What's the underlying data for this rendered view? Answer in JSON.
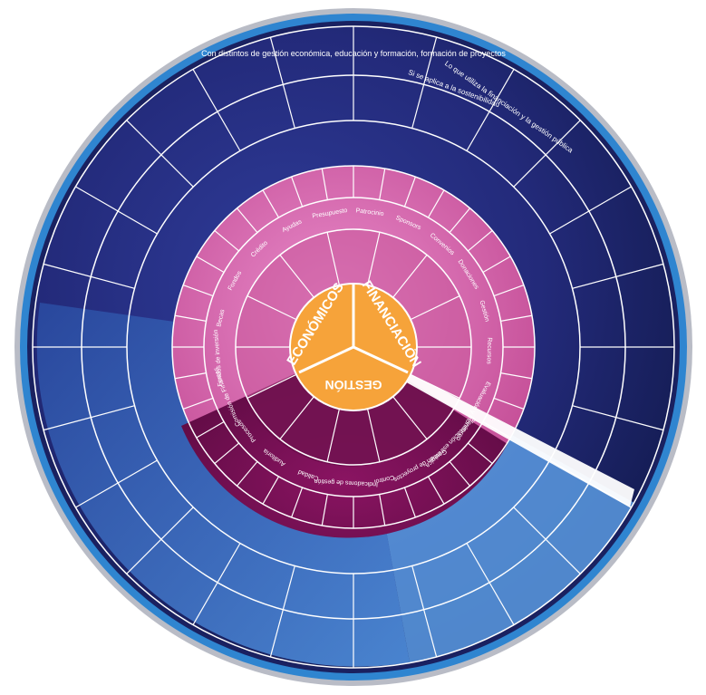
{
  "center": {
    "sectors": [
      {
        "label": "ECONÓMICOS"
      },
      {
        "label": "FINANCIACIÓN"
      },
      {
        "label": "GESTIÓN"
      }
    ]
  },
  "ring_pink": {
    "labels": [
      "Comisión de Finanzas",
      "Fondos de inversión",
      "Becas",
      "Fondos",
      "Crédito",
      "Ayudas",
      "Presupuesto",
      "Patrocinio",
      "Sponsors",
      "Convenios",
      "Donaciones",
      "Gestión",
      "Recursos"
    ]
  },
  "ring_dark": {
    "labels": [
      "Evaluación y monitoreo",
      "Planificación estratégica",
      "Gestión de proyectos",
      "Control",
      "Indicadores de gestión",
      "Calidad",
      "Auditoría",
      "Procesos"
    ]
  },
  "outer_texts": [
    "Con distintos de gestión económica, educación y formación, formación de proyectos",
    "Lo que utiliza la financiación y la gestión pública",
    "Si se aplica a la sostenibilidad"
  ],
  "colors": {
    "center": "#f6a33a",
    "pink_light": "#e48cc4",
    "pink_mid": "#c2448a",
    "magenta_dark": "#6d0e4e",
    "navy": "#1f1f66",
    "blue_mid": "#2b5aa8",
    "blue_light": "#5d9ce0",
    "rim_blue": "#3c8fd8",
    "rim_grey": "#c9ccd4"
  }
}
